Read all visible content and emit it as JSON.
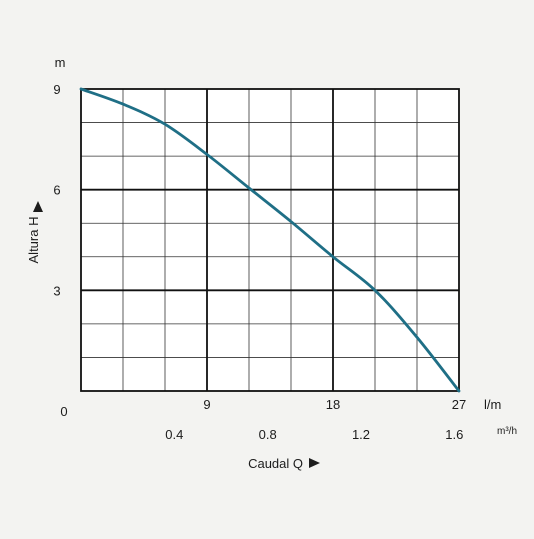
{
  "chart_data": {
    "type": "line",
    "title": "",
    "ylabel": "Altura  H",
    "ylabel_unit": "m",
    "xlabel": "Caudal  Q",
    "x_unit_primary": "l/m",
    "x_unit_secondary": "m³/h",
    "origin_label": "0",
    "ylim": [
      0,
      9
    ],
    "xlim": [
      0,
      27
    ],
    "y_ticks": [
      {
        "v": 3,
        "label": "3"
      },
      {
        "v": 6,
        "label": "6"
      },
      {
        "v": 9,
        "label": "9"
      }
    ],
    "x_ticks_primary": [
      {
        "v": 9,
        "label": "9"
      },
      {
        "v": 18,
        "label": "18"
      },
      {
        "v": 27,
        "label": "27"
      }
    ],
    "x_ticks_secondary": [
      {
        "v": 6.667,
        "label": "0.4"
      },
      {
        "v": 13.333,
        "label": "0.8"
      },
      {
        "v": 20,
        "label": "1.2"
      },
      {
        "v": 26.667,
        "label": "1.6"
      }
    ],
    "grid": true,
    "grid_minor_x_step": 3,
    "grid_minor_y_step": 1,
    "series": [
      {
        "name": "",
        "color": "#1f6f86",
        "x": [
          0,
          3,
          6,
          9,
          12,
          15,
          18,
          21,
          24,
          27
        ],
        "y": [
          9.0,
          8.55,
          7.95,
          7.05,
          6.05,
          5.05,
          4.0,
          3.0,
          1.6,
          0.0
        ]
      }
    ]
  }
}
